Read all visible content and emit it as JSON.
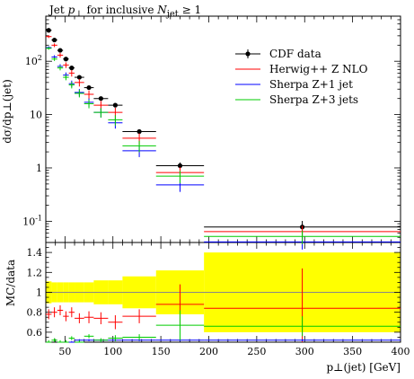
{
  "chart_data": {
    "type": "scatter",
    "title_prefix": "Jet",
    "title_pt": "p",
    "title_pt_sub": "⊥",
    "title_mid": " for inclusive ",
    "title_n": "N",
    "title_n_sub": "jet",
    "title_suffix": " ≥ 1",
    "ylabel_top": "dσ/dp⊥(jet)",
    "ylabel_bottom": "MC/data",
    "xlabel": "p⊥(jet) [GeV]",
    "xlim": [
      30,
      400
    ],
    "ylim_top": [
      0.04,
      700
    ],
    "ylim_bottom": [
      0.5,
      1.5
    ],
    "log_y_top": true,
    "x_ticks": [
      "50",
      "100",
      "150",
      "200",
      "250",
      "300",
      "350",
      "400"
    ],
    "y_ticks_top": [
      "10^-1",
      "1",
      "10",
      "10^2"
    ],
    "y_ticks_bottom": [
      "0.6",
      "0.8",
      "1",
      "1.2",
      "1.4"
    ],
    "legend_position": "top-right",
    "bins": [
      [
        30,
        36
      ],
      [
        36,
        42
      ],
      [
        42,
        48
      ],
      [
        48,
        54
      ],
      [
        54,
        60
      ],
      [
        60,
        70
      ],
      [
        70,
        80
      ],
      [
        80,
        95
      ],
      [
        95,
        110
      ],
      [
        110,
        145
      ],
      [
        145,
        195
      ],
      [
        195,
        400
      ]
    ],
    "series": [
      {
        "name": "CDF data",
        "color": "#000000",
        "values": [
          380,
          250,
          160,
          110,
          75,
          50,
          32,
          20,
          15,
          4.8,
          1.1,
          0.078
        ],
        "yerr_rel": [
          0.05,
          0.05,
          0.05,
          0.05,
          0.05,
          0.06,
          0.06,
          0.07,
          0.08,
          0.1,
          0.15,
          0.3
        ],
        "ratio": [
          1,
          1,
          1,
          1,
          1,
          1,
          1,
          1,
          1,
          1,
          1,
          1
        ]
      },
      {
        "name": "Herwig++ Z NLO",
        "color": "#ff0000",
        "values": [
          290,
          200,
          130,
          85,
          60,
          40,
          24,
          15,
          11,
          3.6,
          0.82,
          0.064
        ],
        "ratio": [
          0.78,
          0.8,
          0.82,
          0.76,
          0.8,
          0.74,
          0.75,
          0.74,
          0.7,
          0.76,
          0.88,
          0.84
        ],
        "ratio_err": [
          0.05,
          0.05,
          0.05,
          0.05,
          0.05,
          0.05,
          0.06,
          0.06,
          0.07,
          0.07,
          0.2,
          0.4
        ]
      },
      {
        "name": "Sherpa Z+1 jet",
        "color": "#0000ff",
        "values": [
          180,
          120,
          80,
          55,
          38,
          26,
          17,
          11,
          7,
          2.1,
          0.48,
          0.041
        ],
        "ratio": [
          0.48,
          0.48,
          0.5,
          0.5,
          0.5,
          0.52,
          0.52,
          0.52,
          0.52,
          0.52,
          0.52,
          0.52
        ],
        "ratio_err": [
          0.01,
          0.01,
          0.01,
          0.01,
          0.01,
          0.01,
          0.01,
          0.01,
          0.01,
          0.01,
          0.01,
          0.01
        ]
      },
      {
        "name": "Sherpa Z+3 jets",
        "color": "#00cc00",
        "values": [
          175,
          110,
          75,
          50,
          36,
          25,
          16,
          11,
          8,
          2.6,
          0.7,
          0.052
        ],
        "ratio": [
          0.5,
          0.52,
          0.5,
          0.5,
          0.54,
          0.5,
          0.56,
          0.52,
          0.54,
          0.55,
          0.67,
          0.66
        ],
        "ratio_err": [
          0.02,
          0.02,
          0.02,
          0.02,
          0.02,
          0.02,
          0.02,
          0.02,
          0.03,
          0.03,
          0.15,
          0.1
        ]
      }
    ],
    "data_band": [
      0.11,
      0.1,
      0.1,
      0.1,
      0.1,
      0.1,
      0.1,
      0.12,
      0.12,
      0.16,
      0.22,
      0.4
    ]
  }
}
